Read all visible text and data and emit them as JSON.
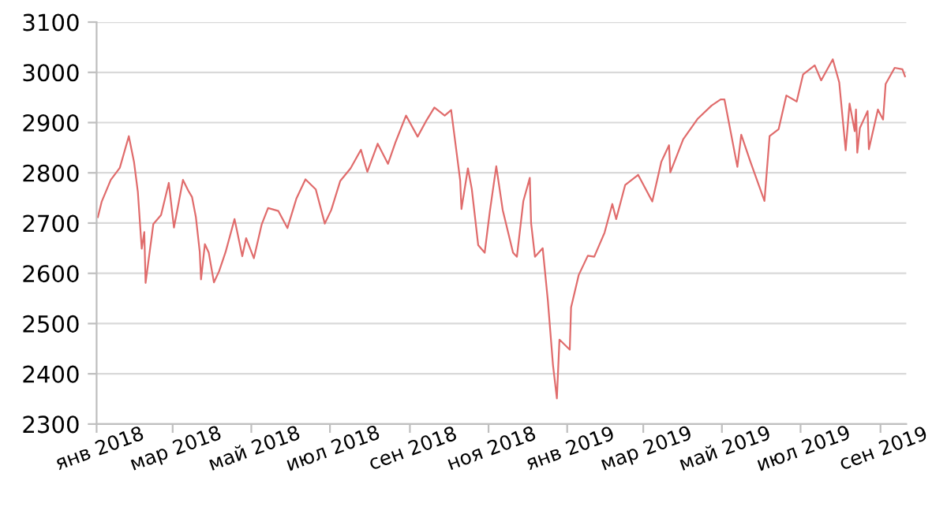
{
  "chart_data": {
    "type": "line",
    "color": "#e06c6c",
    "grid": "y",
    "legend": false,
    "marker": "none",
    "line_style": "solid",
    "xlim": [
      "2018-01-01",
      "2019-09-21"
    ],
    "ylim": [
      2300,
      3100
    ],
    "yticks": [
      2300,
      2400,
      2500,
      2600,
      2700,
      2800,
      2900,
      3000,
      3100
    ],
    "xticks": [
      {
        "value": "2018-01-01",
        "label": "янв 2018"
      },
      {
        "value": "2018-03-01",
        "label": "мар 2018"
      },
      {
        "value": "2018-05-01",
        "label": "май 2018"
      },
      {
        "value": "2018-07-01",
        "label": "июл 2018"
      },
      {
        "value": "2018-09-01",
        "label": "сен 2018"
      },
      {
        "value": "2018-11-01",
        "label": "ноя 2018"
      },
      {
        "value": "2019-01-01",
        "label": "янв 2019"
      },
      {
        "value": "2019-03-01",
        "label": "мар 2019"
      },
      {
        "value": "2019-05-01",
        "label": "май 2019"
      },
      {
        "value": "2019-07-01",
        "label": "июл 2019"
      },
      {
        "value": "2019-09-01",
        "label": "сен 2019"
      }
    ],
    "x": [
      "2018-01-02",
      "2018-01-05",
      "2018-01-12",
      "2018-01-19",
      "2018-01-26",
      "2018-01-30",
      "2018-02-02",
      "2018-02-05",
      "2018-02-07",
      "2018-02-08",
      "2018-02-14",
      "2018-02-20",
      "2018-02-26",
      "2018-03-02",
      "2018-03-09",
      "2018-03-13",
      "2018-03-16",
      "2018-03-19",
      "2018-03-22",
      "2018-03-23",
      "2018-03-26",
      "2018-03-29",
      "2018-04-02",
      "2018-04-06",
      "2018-04-11",
      "2018-04-18",
      "2018-04-24",
      "2018-04-27",
      "2018-05-03",
      "2018-05-09",
      "2018-05-14",
      "2018-05-22",
      "2018-05-29",
      "2018-06-05",
      "2018-06-12",
      "2018-06-20",
      "2018-06-27",
      "2018-07-02",
      "2018-07-09",
      "2018-07-17",
      "2018-07-25",
      "2018-07-30",
      "2018-08-07",
      "2018-08-15",
      "2018-08-21",
      "2018-08-29",
      "2018-09-07",
      "2018-09-14",
      "2018-09-20",
      "2018-09-28",
      "2018-10-03",
      "2018-10-05",
      "2018-10-10",
      "2018-10-11",
      "2018-10-16",
      "2018-10-19",
      "2018-10-24",
      "2018-10-29",
      "2018-11-02",
      "2018-11-07",
      "2018-11-12",
      "2018-11-20",
      "2018-11-23",
      "2018-11-28",
      "2018-12-03",
      "2018-12-04",
      "2018-12-07",
      "2018-12-13",
      "2018-12-17",
      "2018-12-21",
      "2018-12-24",
      "2018-12-26",
      "2019-01-03",
      "2019-01-04",
      "2019-01-10",
      "2019-01-17",
      "2019-01-22",
      "2019-01-30",
      "2019-02-05",
      "2019-02-08",
      "2019-02-15",
      "2019-02-25",
      "2019-03-08",
      "2019-03-15",
      "2019-03-21",
      "2019-03-22",
      "2019-04-01",
      "2019-04-12",
      "2019-04-23",
      "2019-04-30",
      "2019-05-03",
      "2019-05-13",
      "2019-05-16",
      "2019-05-23",
      "2019-06-03",
      "2019-06-07",
      "2019-06-14",
      "2019-06-20",
      "2019-06-28",
      "2019-07-03",
      "2019-07-12",
      "2019-07-17",
      "2019-07-26",
      "2019-07-31",
      "2019-08-05",
      "2019-08-08",
      "2019-08-12",
      "2019-08-13",
      "2019-08-14",
      "2019-08-16",
      "2019-08-22",
      "2019-08-23",
      "2019-08-30",
      "2019-09-03",
      "2019-09-05",
      "2019-09-12",
      "2019-09-18",
      "2019-09-20"
    ],
    "values": [
      2712,
      2743,
      2786,
      2810,
      2873,
      2822,
      2762,
      2649,
      2682,
      2581,
      2698,
      2716,
      2780,
      2691,
      2786,
      2765,
      2752,
      2712,
      2643,
      2588,
      2658,
      2641,
      2582,
      2604,
      2642,
      2708,
      2634,
      2670,
      2630,
      2697,
      2730,
      2724,
      2690,
      2749,
      2787,
      2767,
      2699,
      2726,
      2784,
      2809,
      2846,
      2802,
      2858,
      2818,
      2862,
      2914,
      2872,
      2905,
      2930,
      2914,
      2925,
      2885,
      2785,
      2728,
      2809,
      2768,
      2656,
      2641,
      2723,
      2813,
      2726,
      2641,
      2633,
      2744,
      2790,
      2700,
      2633,
      2650,
      2546,
      2417,
      2351,
      2468,
      2448,
      2532,
      2597,
      2635,
      2633,
      2681,
      2738,
      2708,
      2776,
      2796,
      2743,
      2822,
      2855,
      2801,
      2867,
      2907,
      2934,
      2946,
      2946,
      2812,
      2876,
      2823,
      2744,
      2873,
      2887,
      2954,
      2942,
      2996,
      3014,
      2984,
      3026,
      2980,
      2845,
      2938,
      2883,
      2926,
      2840,
      2889,
      2923,
      2847,
      2926,
      2906,
      2977,
      3009,
      3006,
      2992
    ]
  }
}
